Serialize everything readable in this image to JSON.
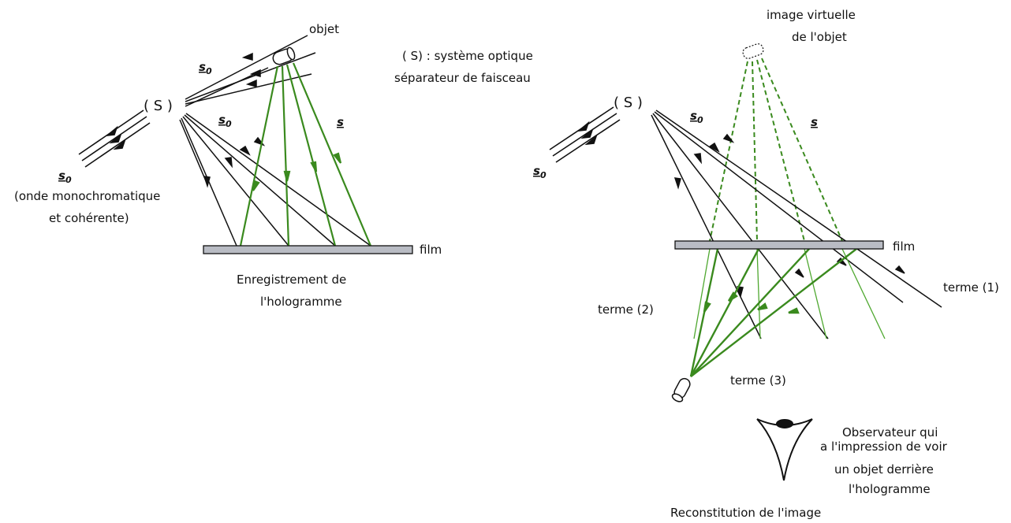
{
  "colors": {
    "ink": "#111111",
    "beam_green": "#3a8a1e",
    "film_fill": "#b9bcc4"
  },
  "left": {
    "objet": "objet",
    "system_line1": "( S) : système optique",
    "system_line2": "séparateur de faisceau",
    "s_paren": "( S )",
    "s0_a": "s",
    "s0_a_sub": "0",
    "s0_b": "s",
    "s0_b_sub": "0",
    "s_label": "s",
    "s0_c": "s",
    "s0_c_sub": "0",
    "wave_line1": "(onde monochromatique",
    "wave_line2": "et cohérente)",
    "film": "film",
    "caption_line1": "Enregistrement de",
    "caption_line2": "l'hologramme"
  },
  "right": {
    "virtual_line1": "image virtuelle",
    "virtual_line2": "de l'objet",
    "s_paren": "( S )",
    "s0_a": "s",
    "s0_a_sub": "0",
    "s_label": "s",
    "s0_b": "s",
    "s0_b_sub": "0",
    "film": "film",
    "terme1": "terme (1)",
    "terme2": "terme (2)",
    "terme3": "terme (3)",
    "obs_line1": "Observateur qui",
    "obs_line2": "a l'impression de voir",
    "obs_line3": "un objet derrière",
    "obs_line4": "l'hologramme",
    "caption": "Reconstitution de l'image"
  }
}
